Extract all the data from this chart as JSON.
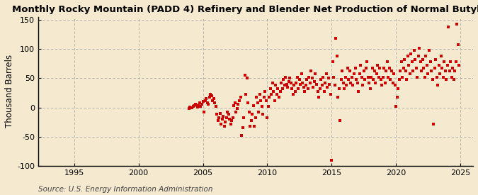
{
  "title": "Monthly Rocky Mountain (PADD 4) Refinery and Blender Net Production of Normal Butylene",
  "ylabel": "Thousand Barrels",
  "source": "Source: U.S. Energy Information Administration",
  "background_color": "#f5e9cf",
  "plot_bg_color": "#f5e9cf",
  "marker_color": "#cc0000",
  "xlim": [
    1992.2,
    2026.0
  ],
  "ylim": [
    -100,
    155
  ],
  "yticks": [
    -100,
    -50,
    0,
    50,
    100,
    150
  ],
  "xticks": [
    1995,
    2000,
    2005,
    2010,
    2015,
    2020,
    2025
  ],
  "title_fontsize": 9.5,
  "ylabel_fontsize": 8.5,
  "source_fontsize": 7.5,
  "tick_fontsize": 8,
  "data_points": [
    [
      2003.917,
      -2
    ],
    [
      2004.0,
      1
    ],
    [
      2004.083,
      0
    ],
    [
      2004.167,
      -1
    ],
    [
      2004.25,
      2
    ],
    [
      2004.333,
      3
    ],
    [
      2004.417,
      5
    ],
    [
      2004.5,
      4
    ],
    [
      2004.583,
      1
    ],
    [
      2004.667,
      3
    ],
    [
      2004.75,
      8
    ],
    [
      2004.833,
      2
    ],
    [
      2004.917,
      6
    ],
    [
      2005.0,
      10
    ],
    [
      2005.083,
      -8
    ],
    [
      2005.167,
      12
    ],
    [
      2005.25,
      15
    ],
    [
      2005.333,
      8
    ],
    [
      2005.417,
      5
    ],
    [
      2005.5,
      18
    ],
    [
      2005.583,
      22
    ],
    [
      2005.667,
      20
    ],
    [
      2005.75,
      12
    ],
    [
      2005.833,
      15
    ],
    [
      2005.917,
      8
    ],
    [
      2006.0,
      2
    ],
    [
      2006.083,
      -12
    ],
    [
      2006.167,
      -22
    ],
    [
      2006.25,
      -18
    ],
    [
      2006.333,
      -10
    ],
    [
      2006.417,
      -28
    ],
    [
      2006.5,
      -20
    ],
    [
      2006.583,
      -15
    ],
    [
      2006.667,
      -32
    ],
    [
      2006.75,
      -25
    ],
    [
      2006.833,
      -18
    ],
    [
      2006.917,
      -8
    ],
    [
      2007.0,
      -12
    ],
    [
      2007.083,
      -20
    ],
    [
      2007.167,
      -28
    ],
    [
      2007.25,
      -22
    ],
    [
      2007.333,
      -18
    ],
    [
      2007.417,
      3
    ],
    [
      2007.5,
      8
    ],
    [
      2007.583,
      -8
    ],
    [
      2007.667,
      -2
    ],
    [
      2007.75,
      5
    ],
    [
      2007.833,
      12
    ],
    [
      2007.917,
      18
    ],
    [
      2008.0,
      -48
    ],
    [
      2008.083,
      -35
    ],
    [
      2008.167,
      -18
    ],
    [
      2008.25,
      55
    ],
    [
      2008.333,
      22
    ],
    [
      2008.417,
      50
    ],
    [
      2008.5,
      8
    ],
    [
      2008.583,
      -8
    ],
    [
      2008.667,
      -32
    ],
    [
      2008.75,
      -22
    ],
    [
      2008.833,
      -12
    ],
    [
      2008.917,
      3
    ],
    [
      2009.0,
      -32
    ],
    [
      2009.083,
      -18
    ],
    [
      2009.167,
      18
    ],
    [
      2009.25,
      8
    ],
    [
      2009.333,
      -8
    ],
    [
      2009.417,
      22
    ],
    [
      2009.5,
      12
    ],
    [
      2009.583,
      2
    ],
    [
      2009.667,
      -12
    ],
    [
      2009.75,
      18
    ],
    [
      2009.833,
      28
    ],
    [
      2009.917,
      12
    ],
    [
      2010.0,
      -18
    ],
    [
      2010.083,
      2
    ],
    [
      2010.167,
      18
    ],
    [
      2010.25,
      32
    ],
    [
      2010.333,
      22
    ],
    [
      2010.417,
      42
    ],
    [
      2010.5,
      28
    ],
    [
      2010.583,
      12
    ],
    [
      2010.667,
      38
    ],
    [
      2010.75,
      22
    ],
    [
      2010.833,
      32
    ],
    [
      2010.917,
      18
    ],
    [
      2011.0,
      28
    ],
    [
      2011.083,
      42
    ],
    [
      2011.167,
      32
    ],
    [
      2011.25,
      48
    ],
    [
      2011.333,
      38
    ],
    [
      2011.417,
      52
    ],
    [
      2011.5,
      40
    ],
    [
      2011.583,
      35
    ],
    [
      2011.667,
      45
    ],
    [
      2011.75,
      50
    ],
    [
      2011.833,
      42
    ],
    [
      2011.917,
      32
    ],
    [
      2012.0,
      22
    ],
    [
      2012.083,
      38
    ],
    [
      2012.167,
      28
    ],
    [
      2012.25,
      42
    ],
    [
      2012.333,
      52
    ],
    [
      2012.417,
      32
    ],
    [
      2012.5,
      48
    ],
    [
      2012.583,
      40
    ],
    [
      2012.667,
      58
    ],
    [
      2012.75,
      42
    ],
    [
      2012.833,
      35
    ],
    [
      2012.917,
      28
    ],
    [
      2013.0,
      38
    ],
    [
      2013.083,
      48
    ],
    [
      2013.167,
      32
    ],
    [
      2013.25,
      52
    ],
    [
      2013.333,
      42
    ],
    [
      2013.417,
      62
    ],
    [
      2013.5,
      50
    ],
    [
      2013.583,
      35
    ],
    [
      2013.667,
      45
    ],
    [
      2013.75,
      58
    ],
    [
      2013.833,
      40
    ],
    [
      2013.917,
      28
    ],
    [
      2014.0,
      18
    ],
    [
      2014.083,
      32
    ],
    [
      2014.167,
      48
    ],
    [
      2014.25,
      38
    ],
    [
      2014.333,
      52
    ],
    [
      2014.417,
      28
    ],
    [
      2014.5,
      42
    ],
    [
      2014.583,
      58
    ],
    [
      2014.667,
      35
    ],
    [
      2014.75,
      50
    ],
    [
      2014.833,
      40
    ],
    [
      2014.917,
      22
    ],
    [
      2015.0,
      -90
    ],
    [
      2015.083,
      78
    ],
    [
      2015.167,
      52
    ],
    [
      2015.25,
      38
    ],
    [
      2015.333,
      118
    ],
    [
      2015.417,
      88
    ],
    [
      2015.5,
      18
    ],
    [
      2015.583,
      32
    ],
    [
      2015.667,
      -22
    ],
    [
      2015.75,
      48
    ],
    [
      2015.833,
      62
    ],
    [
      2015.917,
      42
    ],
    [
      2016.0,
      32
    ],
    [
      2016.083,
      52
    ],
    [
      2016.167,
      38
    ],
    [
      2016.25,
      68
    ],
    [
      2016.333,
      48
    ],
    [
      2016.417,
      62
    ],
    [
      2016.5,
      42
    ],
    [
      2016.583,
      52
    ],
    [
      2016.667,
      38
    ],
    [
      2016.75,
      58
    ],
    [
      2016.833,
      68
    ],
    [
      2016.917,
      48
    ],
    [
      2017.0,
      42
    ],
    [
      2017.083,
      28
    ],
    [
      2017.167,
      58
    ],
    [
      2017.25,
      72
    ],
    [
      2017.333,
      52
    ],
    [
      2017.417,
      38
    ],
    [
      2017.5,
      62
    ],
    [
      2017.583,
      48
    ],
    [
      2017.667,
      68
    ],
    [
      2017.75,
      78
    ],
    [
      2017.833,
      52
    ],
    [
      2017.917,
      42
    ],
    [
      2018.0,
      32
    ],
    [
      2018.083,
      52
    ],
    [
      2018.167,
      68
    ],
    [
      2018.25,
      48
    ],
    [
      2018.333,
      62
    ],
    [
      2018.417,
      42
    ],
    [
      2018.5,
      58
    ],
    [
      2018.583,
      72
    ],
    [
      2018.667,
      52
    ],
    [
      2018.75,
      68
    ],
    [
      2018.833,
      48
    ],
    [
      2018.917,
      38
    ],
    [
      2019.0,
      52
    ],
    [
      2019.083,
      68
    ],
    [
      2019.167,
      42
    ],
    [
      2019.25,
      62
    ],
    [
      2019.333,
      78
    ],
    [
      2019.417,
      52
    ],
    [
      2019.5,
      68
    ],
    [
      2019.583,
      48
    ],
    [
      2019.667,
      62
    ],
    [
      2019.75,
      42
    ],
    [
      2019.833,
      58
    ],
    [
      2019.917,
      38
    ],
    [
      2020.0,
      2
    ],
    [
      2020.083,
      18
    ],
    [
      2020.167,
      32
    ],
    [
      2020.25,
      48
    ],
    [
      2020.333,
      62
    ],
    [
      2020.417,
      78
    ],
    [
      2020.5,
      52
    ],
    [
      2020.583,
      68
    ],
    [
      2020.667,
      82
    ],
    [
      2020.75,
      62
    ],
    [
      2020.833,
      48
    ],
    [
      2020.917,
      88
    ],
    [
      2021.0,
      72
    ],
    [
      2021.083,
      58
    ],
    [
      2021.167,
      92
    ],
    [
      2021.25,
      78
    ],
    [
      2021.333,
      62
    ],
    [
      2021.417,
      98
    ],
    [
      2021.5,
      82
    ],
    [
      2021.583,
      68
    ],
    [
      2021.667,
      52
    ],
    [
      2021.75,
      88
    ],
    [
      2021.833,
      102
    ],
    [
      2021.917,
      78
    ],
    [
      2022.0,
      62
    ],
    [
      2022.083,
      82
    ],
    [
      2022.167,
      68
    ],
    [
      2022.25,
      52
    ],
    [
      2022.333,
      88
    ],
    [
      2022.417,
      72
    ],
    [
      2022.5,
      58
    ],
    [
      2022.583,
      98
    ],
    [
      2022.667,
      78
    ],
    [
      2022.75,
      62
    ],
    [
      2022.833,
      48
    ],
    [
      2022.917,
      -28
    ],
    [
      2023.0,
      68
    ],
    [
      2023.083,
      82
    ],
    [
      2023.167,
      52
    ],
    [
      2023.25,
      38
    ],
    [
      2023.333,
      72
    ],
    [
      2023.417,
      58
    ],
    [
      2023.5,
      88
    ],
    [
      2023.583,
      68
    ],
    [
      2023.667,
      52
    ],
    [
      2023.75,
      78
    ],
    [
      2023.833,
      62
    ],
    [
      2023.917,
      48
    ],
    [
      2024.0,
      72
    ],
    [
      2024.083,
      138
    ],
    [
      2024.167,
      62
    ],
    [
      2024.25,
      78
    ],
    [
      2024.333,
      52
    ],
    [
      2024.417,
      68
    ],
    [
      2024.5,
      48
    ],
    [
      2024.583,
      62
    ],
    [
      2024.667,
      78
    ],
    [
      2024.75,
      143
    ],
    [
      2024.833,
      108
    ],
    [
      2024.917,
      72
    ]
  ]
}
